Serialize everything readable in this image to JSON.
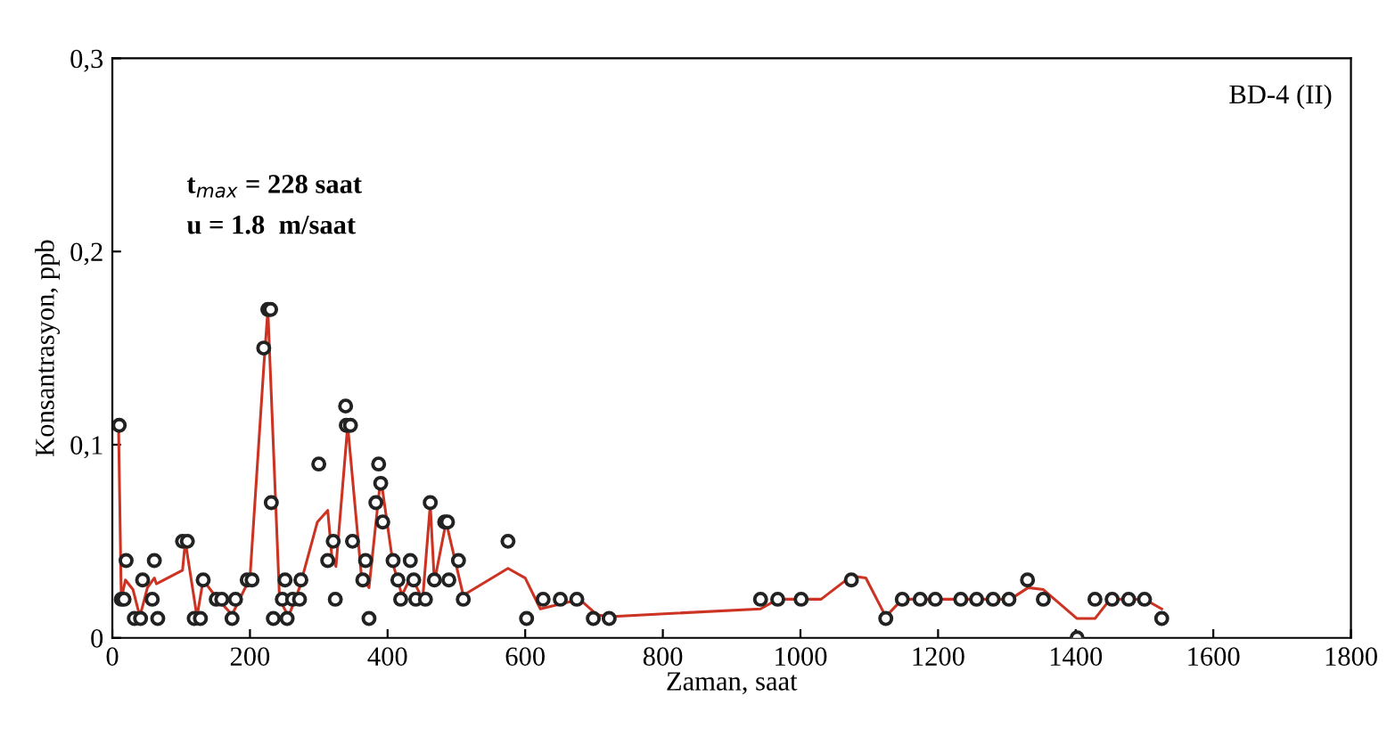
{
  "chart_data": {
    "type": "scatter",
    "xlabel": "Zaman, saat",
    "ylabel": "Konsantrasyon, ppb",
    "annotations": [
      "BD-4 (II)",
      "t$_{max}$ = 228 saat",
      "u = 1.8  m/saat"
    ],
    "xlim": [
      0,
      1800
    ],
    "xticks": [
      0,
      200,
      400,
      600,
      800,
      1000,
      1200,
      1400,
      1600,
      1800
    ],
    "ylim": [
      0,
      0.3
    ],
    "yticks": [
      {
        "value": 0,
        "label": "0"
      },
      {
        "value": 0.1,
        "label": "0,1"
      },
      {
        "value": 0.2,
        "label": "0,2"
      },
      {
        "value": 0.3,
        "label": "0,3"
      }
    ],
    "grid": false,
    "legend": false,
    "series": [
      {
        "marker": "circle",
        "color": "#222222",
        "x": [
          10,
          13,
          17,
          20,
          32,
          41,
          44,
          58,
          61,
          66,
          102,
          109,
          119,
          128,
          132,
          151,
          159,
          174,
          179,
          196,
          203,
          220,
          226,
          230,
          231,
          234,
          247,
          251,
          254,
          262,
          272,
          274,
          300,
          313,
          321,
          324,
          339,
          340,
          346,
          349,
          364,
          368,
          373,
          383,
          387,
          390,
          393,
          408,
          415,
          419,
          433,
          438,
          441,
          455,
          462,
          468,
          483,
          487,
          489,
          503,
          510,
          575,
          602,
          626,
          651,
          675,
          699,
          722,
          942,
          967,
          1001,
          1074,
          1124,
          1148,
          1174,
          1196,
          1233,
          1256,
          1280,
          1303,
          1330,
          1353,
          1402,
          1428,
          1453,
          1477,
          1500,
          1525
        ],
        "values": [
          0.11,
          0.02,
          0.02,
          0.04,
          0.01,
          0.01,
          0.03,
          0.02,
          0.04,
          0.01,
          0.05,
          0.05,
          0.01,
          0.01,
          0.03,
          0.02,
          0.02,
          0.01,
          0.02,
          0.03,
          0.03,
          0.15,
          0.17,
          0.17,
          0.07,
          0.01,
          0.02,
          0.03,
          0.01,
          0.02,
          0.02,
          0.03,
          0.09,
          0.04,
          0.05,
          0.02,
          0.12,
          0.11,
          0.11,
          0.05,
          0.03,
          0.04,
          0.01,
          0.07,
          0.09,
          0.08,
          0.06,
          0.04,
          0.03,
          0.02,
          0.04,
          0.03,
          0.02,
          0.02,
          0.07,
          0.03,
          0.06,
          0.06,
          0.03,
          0.04,
          0.02,
          0.05,
          0.01,
          0.02,
          0.02,
          0.02,
          0.01,
          0.01,
          0.02,
          0.02,
          0.02,
          0.03,
          0.01,
          0.02,
          0.02,
          0.02,
          0.02,
          0.02,
          0.02,
          0.02,
          0.03,
          0.02,
          0,
          0.02,
          0.02,
          0.02,
          0.02,
          0.01
        ]
      },
      {
        "type": "line",
        "marker": "none",
        "line_style": "solid",
        "color": "#cc3322",
        "x": [
          9,
          13,
          19,
          30,
          40,
          51,
          61,
          64,
          102,
          106,
          123,
          132,
          153,
          174,
          200,
          220,
          226,
          243,
          256,
          272,
          298,
          313,
          319,
          325,
          342,
          362,
          373,
          390,
          408,
          421,
          434,
          451,
          462,
          468,
          485,
          510,
          575,
          600,
          622,
          679,
          704,
          722,
          942,
          967,
          1030,
          1074,
          1095,
          1124,
          1148,
          1305,
          1331,
          1353,
          1402,
          1428,
          1450,
          1500,
          1525
        ],
        "values": [
          0.11,
          0.02,
          0.03,
          0.025,
          0.011,
          0.026,
          0.031,
          0.028,
          0.035,
          0.05,
          0.011,
          0.03,
          0.02,
          0.012,
          0.031,
          0.14,
          0.17,
          0.02,
          0.011,
          0.026,
          0.06,
          0.066,
          0.042,
          0.037,
          0.11,
          0.032,
          0.026,
          0.083,
          0.038,
          0.022,
          0.032,
          0.02,
          0.069,
          0.029,
          0.06,
          0.022,
          0.036,
          0.031,
          0.015,
          0.02,
          0.012,
          0.011,
          0.015,
          0.02,
          0.02,
          0.032,
          0.031,
          0.011,
          0.02,
          0.02,
          0.026,
          0.025,
          0.01,
          0.01,
          0.02,
          0.02,
          0.015
        ]
      }
    ]
  }
}
